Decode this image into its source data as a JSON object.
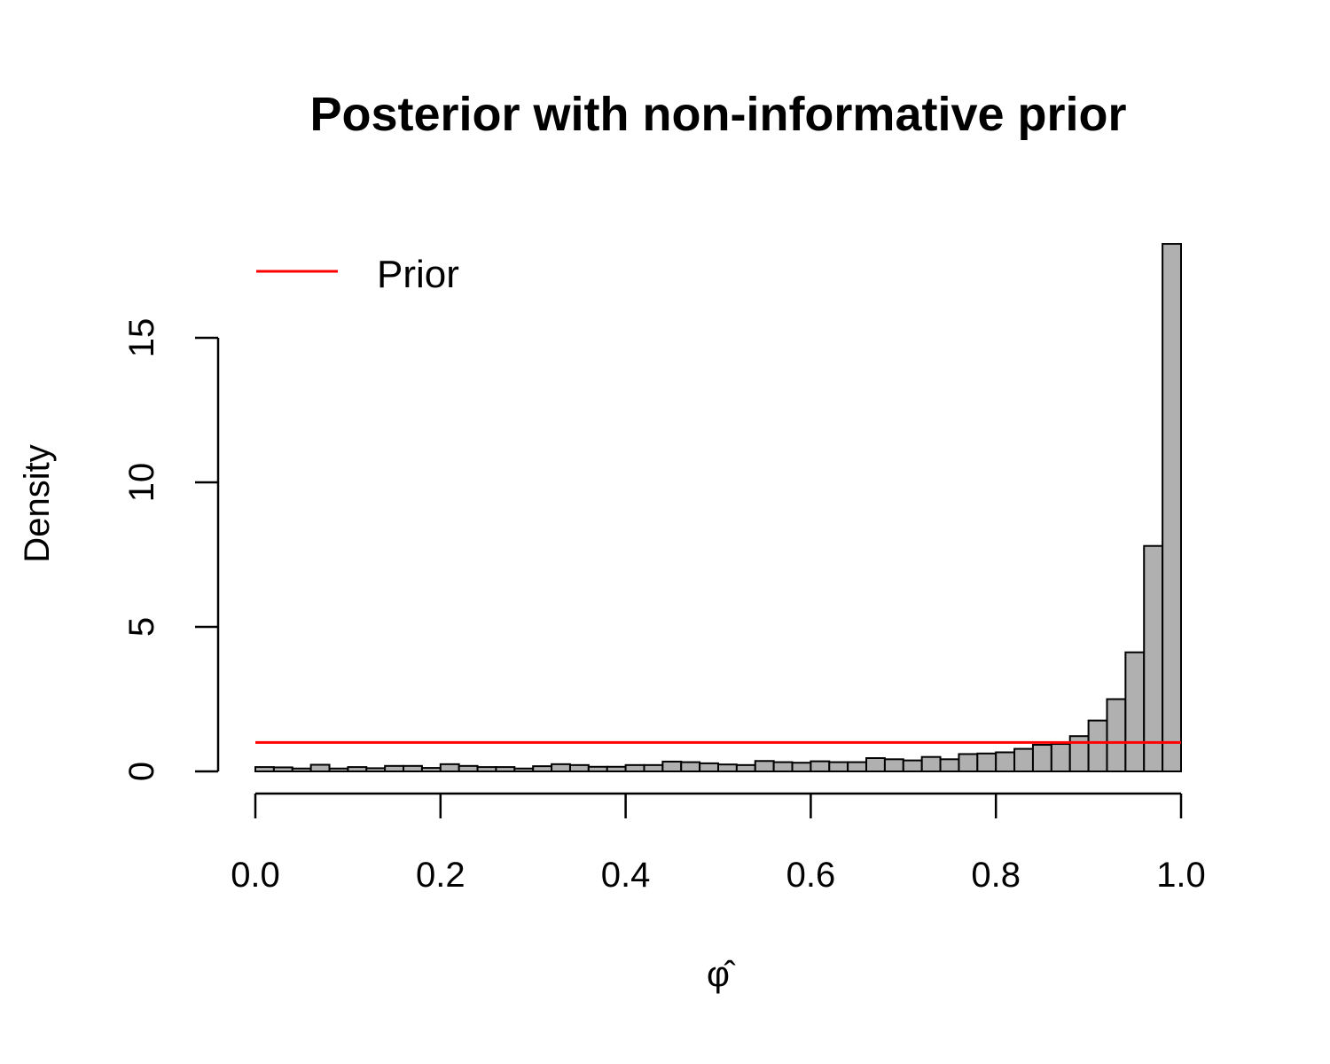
{
  "chart_data": {
    "type": "bar",
    "title": "Posterior with non-informative prior",
    "xlabel": "φ̂",
    "ylabel": "Density",
    "xlim": [
      0,
      1
    ],
    "ylim": [
      0,
      18.3
    ],
    "x_ticks": [
      "0.0",
      "0.2",
      "0.4",
      "0.6",
      "0.8",
      "1.0"
    ],
    "y_ticks": [
      "0",
      "5",
      "10",
      "15"
    ],
    "bin_width": 0.02,
    "bin_starts": [
      0.0,
      0.02,
      0.04,
      0.06,
      0.08,
      0.1,
      0.12,
      0.14,
      0.16,
      0.18,
      0.2,
      0.22,
      0.24,
      0.26,
      0.28,
      0.3,
      0.32,
      0.34,
      0.36,
      0.38,
      0.4,
      0.42,
      0.44,
      0.46,
      0.48,
      0.5,
      0.52,
      0.54,
      0.56,
      0.58,
      0.6,
      0.62,
      0.64,
      0.66,
      0.68,
      0.7,
      0.72,
      0.74,
      0.76,
      0.78,
      0.8,
      0.82,
      0.84,
      0.86,
      0.88,
      0.9,
      0.92,
      0.94,
      0.96,
      0.98
    ],
    "values": [
      0.15,
      0.14,
      0.1,
      0.23,
      0.1,
      0.15,
      0.11,
      0.19,
      0.19,
      0.12,
      0.25,
      0.19,
      0.15,
      0.15,
      0.1,
      0.18,
      0.25,
      0.22,
      0.16,
      0.16,
      0.22,
      0.22,
      0.34,
      0.32,
      0.28,
      0.24,
      0.22,
      0.36,
      0.32,
      0.3,
      0.35,
      0.32,
      0.32,
      0.46,
      0.42,
      0.38,
      0.5,
      0.42,
      0.6,
      0.62,
      0.66,
      0.78,
      0.92,
      0.95,
      1.22,
      1.76,
      2.5,
      4.12,
      7.8,
      18.25
    ],
    "bar_color": "#B0B0B0",
    "series": [
      {
        "name": "Prior",
        "type": "line",
        "value": 1.0,
        "color": "#FF0000"
      }
    ],
    "legend_position": "top-left",
    "grid": false
  }
}
